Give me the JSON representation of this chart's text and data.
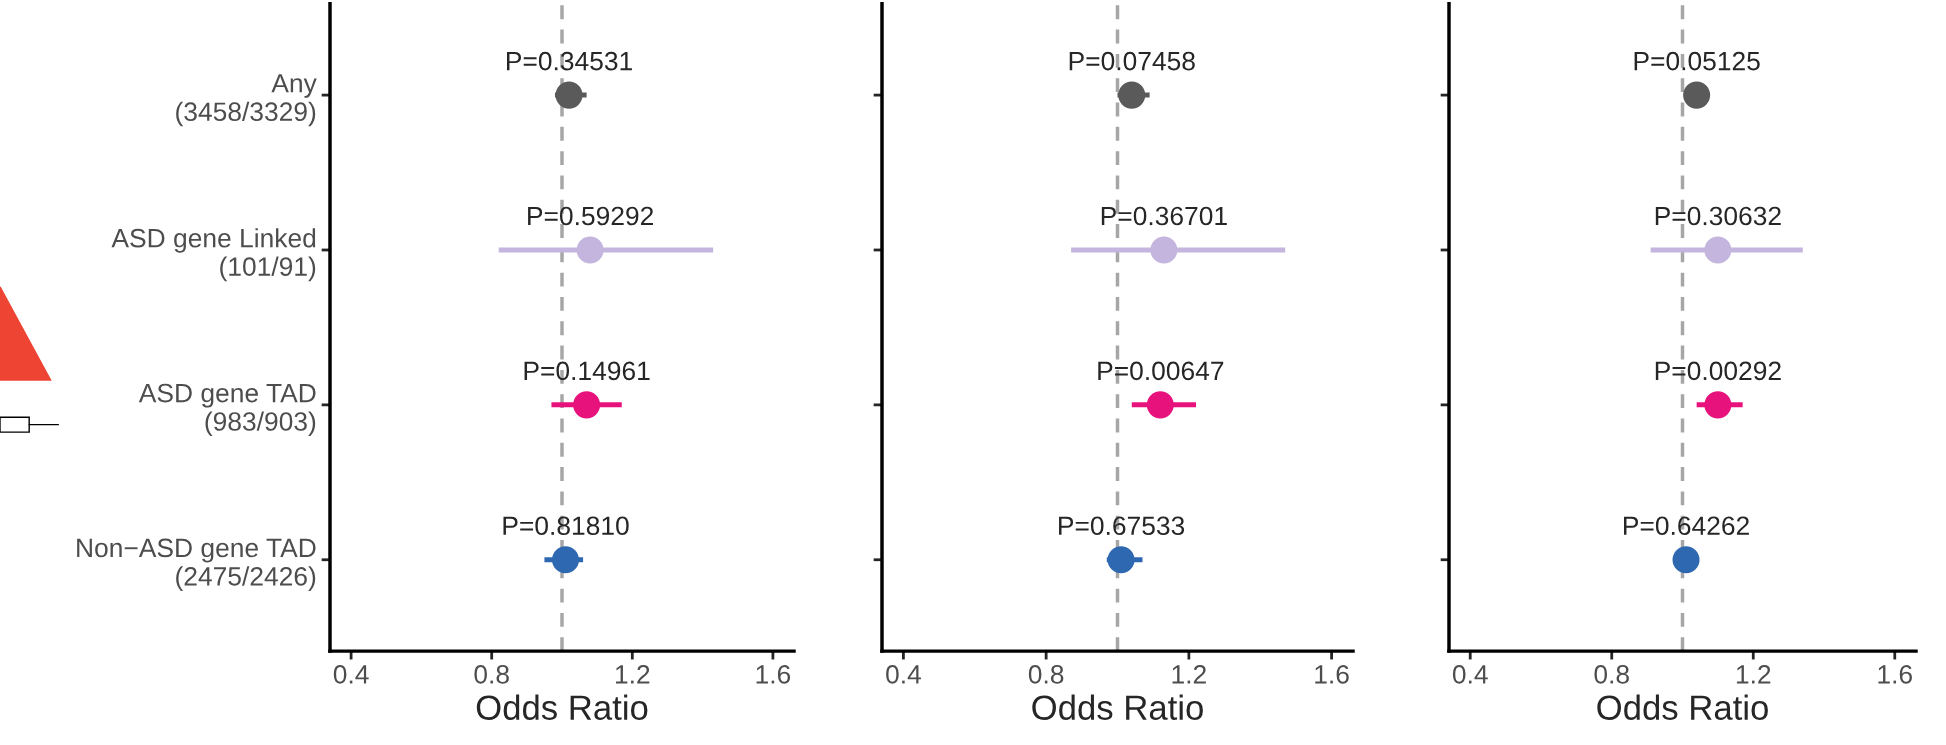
{
  "chart_data": [
    {
      "type": "scatter",
      "orientation": "horizontal",
      "xlabel": "Odds Ratio",
      "categories": [
        "Any\n(3458/3329)",
        "ASD gene Linked\n(101/91)",
        "ASD gene TAD\n(983/903)",
        "Non−ASD gene TAD\n(2475/2426)"
      ],
      "values": [
        1.02,
        1.08,
        1.07,
        1.01
      ],
      "errors": [
        [
          0.98,
          1.07
        ],
        [
          0.82,
          1.43
        ],
        [
          0.97,
          1.17
        ],
        [
          0.95,
          1.06
        ]
      ],
      "colors": [
        "#5a5a5a",
        "#c3b5dd",
        "#e8127d",
        "#2e68b0"
      ],
      "xlim": [
        0.34,
        1.66
      ],
      "xticks": [
        0.4,
        0.8,
        1.2,
        1.6
      ],
      "marker": "circle",
      "ref_lines": [
        {
          "axis": "x",
          "value": 1.0,
          "color": "#a6a6a6",
          "line_style": "dashed"
        }
      ],
      "annotations": [
        {
          "text": "P=0.34531",
          "x": 1.02,
          "y": "Any\n(3458/3329)"
        },
        {
          "text": "P=0.59292",
          "x": 1.08,
          "y": "ASD gene Linked\n(101/91)"
        },
        {
          "text": "P=0.14961",
          "x": 1.07,
          "y": "ASD gene TAD\n(983/903)"
        },
        {
          "text": "P=0.81810",
          "x": 1.01,
          "y": "Non−ASD gene TAD\n(2475/2426)"
        }
      ]
    },
    {
      "type": "scatter",
      "orientation": "horizontal",
      "xlabel": "Odds Ratio",
      "categories": [
        "Any\n(3458/3329)",
        "ASD gene Linked\n(101/91)",
        "ASD gene TAD\n(983/903)",
        "Non−ASD gene TAD\n(2475/2426)"
      ],
      "tick_labels": "x",
      "values": [
        1.04,
        1.13,
        1.12,
        1.01
      ],
      "errors": [
        [
          1.0,
          1.09
        ],
        [
          0.87,
          1.47
        ],
        [
          1.04,
          1.22
        ],
        [
          0.97,
          1.07
        ]
      ],
      "colors": [
        "#5a5a5a",
        "#c3b5dd",
        "#e8127d",
        "#2e68b0"
      ],
      "xlim": [
        0.34,
        1.66
      ],
      "xticks": [
        0.4,
        0.8,
        1.2,
        1.6
      ],
      "marker": "circle",
      "ref_lines": [
        {
          "axis": "x",
          "value": 1.0,
          "color": "#a6a6a6",
          "line_style": "dashed"
        }
      ],
      "annotations": [
        {
          "text": "P=0.07458",
          "x": 1.04,
          "y": "Any\n(3458/3329)"
        },
        {
          "text": "P=0.36701",
          "x": 1.13,
          "y": "ASD gene Linked\n(101/91)"
        },
        {
          "text": "P=0.00647",
          "x": 1.12,
          "y": "ASD gene TAD\n(983/903)"
        },
        {
          "text": "P=0.67533",
          "x": 1.01,
          "y": "Non−ASD gene TAD\n(2475/2426)"
        }
      ]
    },
    {
      "type": "scatter",
      "orientation": "horizontal",
      "xlabel": "Odds Ratio",
      "categories": [
        "Any\n(3458/3329)",
        "ASD gene Linked\n(101/91)",
        "ASD gene TAD\n(983/903)",
        "Non−ASD gene TAD\n(2475/2426)"
      ],
      "tick_labels": "x",
      "values": [
        1.04,
        1.1,
        1.1,
        1.01
      ],
      "errors": [
        null,
        [
          0.91,
          1.34
        ],
        [
          1.04,
          1.17
        ],
        null
      ],
      "colors": [
        "#5a5a5a",
        "#c3b5dd",
        "#e8127d",
        "#2e68b0"
      ],
      "xlim": [
        0.34,
        1.66
      ],
      "xticks": [
        0.4,
        0.8,
        1.2,
        1.6
      ],
      "marker": "circle",
      "ref_lines": [
        {
          "axis": "x",
          "value": 1.0,
          "color": "#a6a6a6",
          "line_style": "dashed"
        }
      ],
      "annotations": [
        {
          "text": "P=0.05125",
          "x": 1.04,
          "y": "Any\n(3458/3329)"
        },
        {
          "text": "P=0.30632",
          "x": 1.1,
          "y": "ASD gene Linked\n(101/91)"
        },
        {
          "text": "P=0.00292",
          "x": 1.1,
          "y": "ASD gene TAD\n(983/903)"
        },
        {
          "text": "P=0.64262",
          "x": 1.01,
          "y": "Non−ASD gene TAD\n(2475/2426)"
        }
      ]
    }
  ]
}
